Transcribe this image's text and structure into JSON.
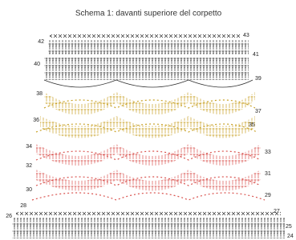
{
  "title": "Schema 1: davanti superiore del corpetto",
  "row_numbers": [
    "42",
    "43",
    "41",
    "40",
    "39",
    "38",
    "37",
    "36",
    "35",
    "34",
    "33",
    "32",
    "31",
    "30",
    "29",
    "28",
    "27",
    "26",
    "25",
    "24"
  ]
}
